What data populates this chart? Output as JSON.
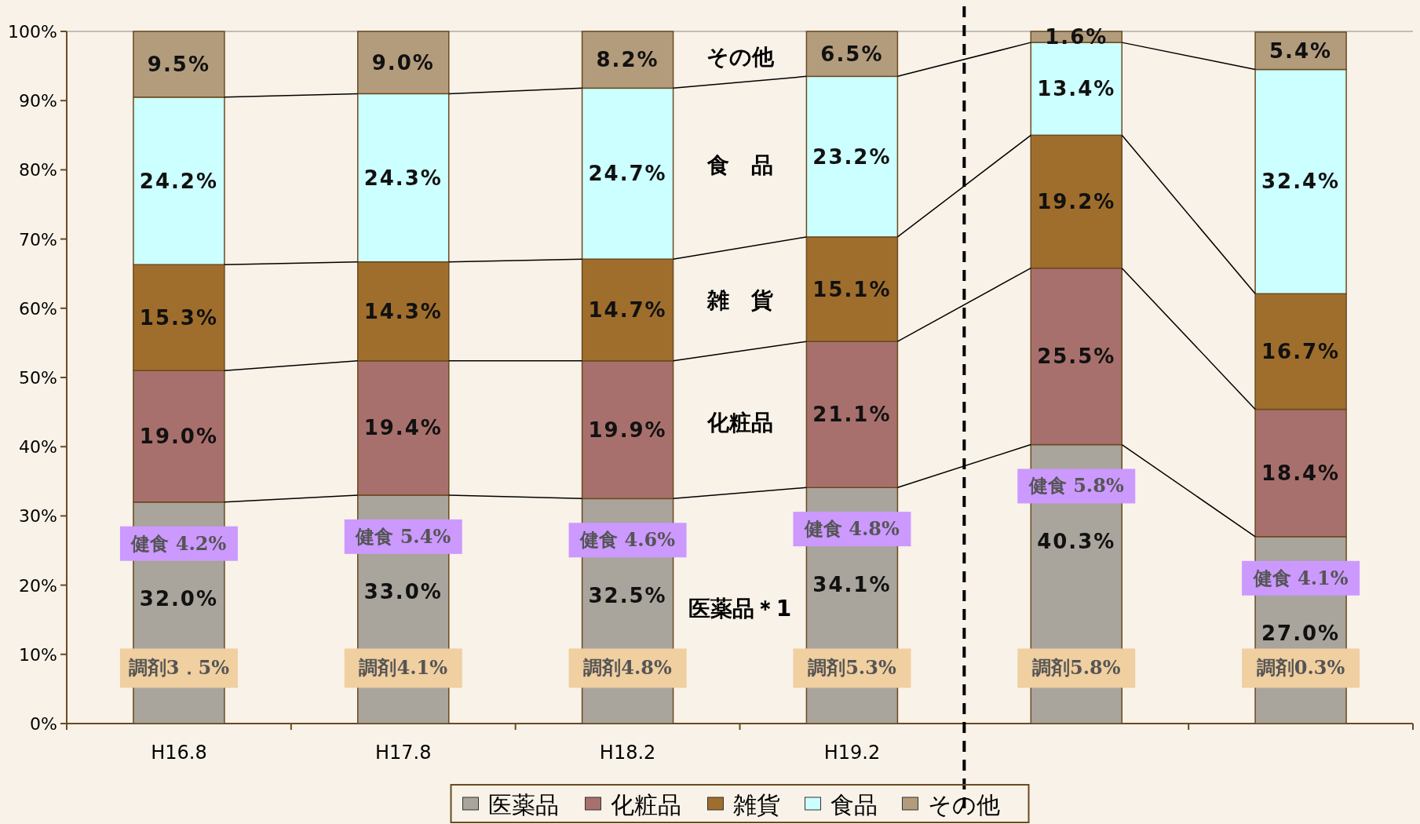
{
  "chart_data": {
    "type": "bar",
    "stacked": true,
    "categories": [
      "H16.8",
      "H17.8",
      "H18.2",
      "H19.2",
      null,
      null
    ],
    "series": [
      {
        "name": "医薬品",
        "color": "#a9a49c",
        "values": [
          32.0,
          33.0,
          32.5,
          34.1,
          40.3,
          27.0
        ],
        "value_labels": [
          "32.0%",
          "33.0%",
          "32.5%",
          "34.1%",
          "40.3%",
          "27.0%"
        ]
      },
      {
        "name": "化粧品",
        "color": "#a8706c",
        "values": [
          19.0,
          19.4,
          19.9,
          21.1,
          25.5,
          18.4
        ],
        "value_labels": [
          "19.0%",
          "19.4%",
          "19.9%",
          "21.1%",
          "25.5%",
          "18.4%"
        ]
      },
      {
        "name": "雑貨",
        "color": "#a06e2c",
        "values": [
          15.3,
          14.3,
          14.7,
          15.1,
          19.2,
          16.7
        ],
        "value_labels": [
          "15.3%",
          "14.3%",
          "14.7%",
          "15.1%",
          "19.2%",
          "16.7%"
        ]
      },
      {
        "name": "食品",
        "color": "#ccffff",
        "values": [
          24.2,
          24.3,
          24.7,
          23.2,
          13.4,
          32.4
        ],
        "value_labels": [
          "24.2%",
          "24.3%",
          "24.7%",
          "23.2%",
          "13.4%",
          "32.4%"
        ]
      },
      {
        "name": "その他",
        "color": "#b39c7c",
        "values": [
          9.5,
          9.0,
          8.2,
          6.5,
          1.6,
          5.4
        ],
        "value_labels": [
          "9.5%",
          "9.0%",
          "8.2%",
          "6.5%",
          "1.6%",
          "5.4%"
        ]
      }
    ],
    "ylim": [
      0,
      100
    ],
    "yticks": [
      {
        "value": 0,
        "label": "0%"
      },
      {
        "value": 10,
        "label": "10%"
      },
      {
        "value": 20,
        "label": "20%"
      },
      {
        "value": 30,
        "label": "30%"
      },
      {
        "value": 40,
        "label": "40%"
      },
      {
        "value": 50,
        "label": "50%"
      },
      {
        "value": 60,
        "label": "60%"
      },
      {
        "value": 70,
        "label": "70%"
      },
      {
        "value": 80,
        "label": "80%"
      },
      {
        "value": 90,
        "label": "90%"
      },
      {
        "value": 100,
        "label": "100%"
      }
    ],
    "annotations": [
      "医薬品＊1",
      "化粧品",
      "雑　貨",
      "食　品",
      "その他",
      "健食 4.2%",
      "健食 5.4%",
      "健食 4.6%",
      "健食 4.8%",
      "健食 5.8%",
      "健食 4.1%",
      "調剤3．5%",
      "調剤4.1%",
      "調剤4.8%",
      "調剤5.3%",
      "調剤5.8%",
      "調剤0.3%"
    ],
    "legend": "bottom",
    "grid": false
  }
}
